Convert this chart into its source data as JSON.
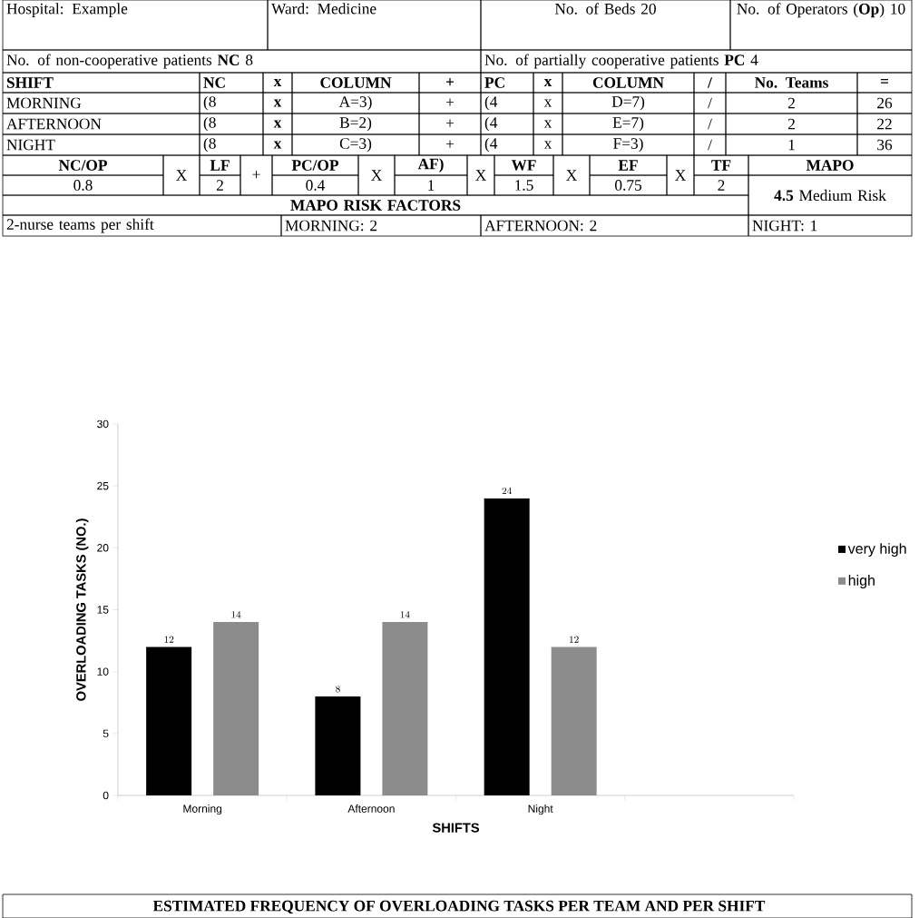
{
  "chart_data": [
    {
      "type": "other",
      "annotations": [
        "Hospital: Example",
        "Ward: Medicine",
        "No. of Beds   20",
        "No. of Operators (**Op**)   10",
        "No. of non-cooperative patients **NC**   8",
        "No. of partially cooperative patients **PC**   4",
        "SHIFT",
        "NC",
        "x",
        "COLUMN",
        "+",
        "PC",
        "x",
        "COLUMN",
        "/",
        "No. Teams",
        "=",
        "MORNING",
        "(8",
        "x",
        "A=3)",
        "+",
        "(4",
        "x",
        "D=7)",
        "/",
        "2",
        "26",
        "AFTERNOON",
        "(8",
        "x",
        "B=2)",
        "+",
        "(4",
        "x",
        "E=7)",
        "/",
        "2",
        "22",
        "NIGHT",
        "(8",
        "x",
        "C=3)",
        "+",
        "(4",
        "x",
        "F=3)",
        "/",
        "1",
        "36",
        "NC/OP",
        "0.8",
        "X",
        "LF",
        "2",
        "+",
        "PC/OP",
        "0.4",
        "X",
        "AF)",
        "1",
        "X",
        "WF",
        "1.5",
        "X",
        "EF",
        "0.75",
        "X",
        "TF",
        "2",
        "MAPO",
        "**4.5** Medium Risk",
        "MAPO RISK FACTORS",
        "2-nurse teams per shift",
        "MORNING: 2",
        "AFTERNOON: 2",
        "NIGHT: 1"
      ]
    },
    {
      "type": "bar",
      "categories": [
        "Morning",
        "Afternoon",
        "Night",
        null
      ],
      "series": [
        {
          "name": "very high",
          "color": "#000000",
          "values": [
            12,
            8,
            24,
            null
          ]
        },
        {
          "name": "high",
          "color": "#8c8c8c",
          "values": [
            14,
            14,
            12,
            null
          ]
        }
      ],
      "xlabel": "SHIFTS",
      "ylabel": "OVERLOADING TASKS (NO.)",
      "ylim": [
        0,
        30
      ],
      "yticks": [
        0,
        5,
        10,
        15,
        20,
        25,
        30
      ],
      "data_labels": true,
      "legend": "right",
      "grid": false,
      "annotations": [
        "ESTIMATED FREQUENCY OF OVERLOADING TASKS PER TEAM AND PER SHIFT"
      ]
    }
  ]
}
